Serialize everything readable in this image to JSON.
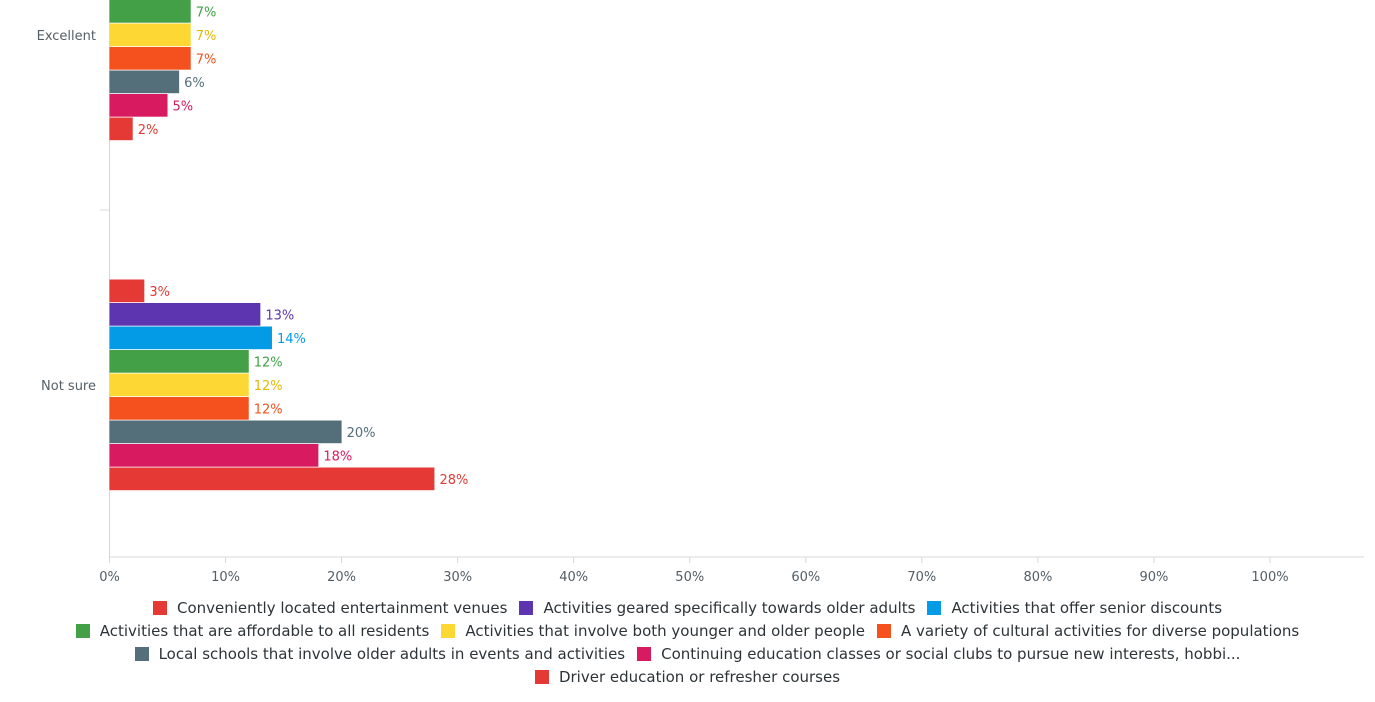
{
  "chart_data": {
    "type": "bar",
    "orientation": "horizontal",
    "xlim": [
      0,
      100
    ],
    "x_ticks": [
      "0%",
      "10%",
      "20%",
      "30%",
      "40%",
      "50%",
      "60%",
      "70%",
      "80%",
      "90%",
      "100%"
    ],
    "categories": [
      "Excellent",
      "Not sure"
    ],
    "legend_position": "bottom",
    "series": [
      {
        "name": "Conveniently located entertainment venues",
        "color": "#e53935",
        "values": [
          null,
          3
        ],
        "labels": [
          "",
          "3%"
        ]
      },
      {
        "name": "Activities geared specifically towards older adults",
        "color": "#5e35b1",
        "values": [
          null,
          13
        ],
        "labels": [
          "",
          "13%"
        ]
      },
      {
        "name": "Activities that offer senior discounts",
        "color": "#039be5",
        "values": [
          null,
          14
        ],
        "labels": [
          "",
          "14%"
        ]
      },
      {
        "name": "Activities that are affordable to all residents",
        "color": "#43a047",
        "values": [
          7,
          12
        ],
        "labels": [
          "7%",
          "12%"
        ]
      },
      {
        "name": "Activities that involve both younger and older people",
        "color": "#fdd835",
        "values": [
          7,
          12
        ],
        "labels": [
          "7%",
          "12%"
        ]
      },
      {
        "name": "A variety of cultural activities for diverse populations",
        "color": "#f4511e",
        "values": [
          7,
          12
        ],
        "labels": [
          "7%",
          "12%"
        ]
      },
      {
        "name": "Local schools that involve older adults in events and activities",
        "color": "#546e7a",
        "values": [
          6,
          20
        ],
        "labels": [
          "6%",
          "20%"
        ]
      },
      {
        "name": "Continuing education classes or social clubs to pursue new interests, hobbi...",
        "color": "#d81b60",
        "values": [
          5,
          18
        ],
        "labels": [
          "5%",
          "18%"
        ]
      },
      {
        "name": "Driver education or refresher courses",
        "color": "#e53935",
        "values": [
          2,
          28
        ],
        "labels": [
          "2%",
          "28%"
        ]
      }
    ],
    "label_colors": {
      "#fdd835": "#e6b800"
    },
    "legend_rows": [
      [
        0,
        1,
        2
      ],
      [
        3,
        4,
        5
      ],
      [
        6,
        7
      ],
      [
        8
      ]
    ]
  }
}
